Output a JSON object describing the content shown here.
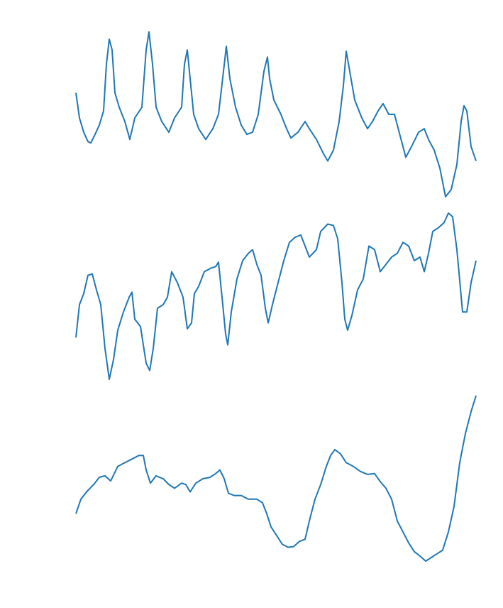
{
  "chart_data": [
    {
      "type": "line",
      "series": [
        {
          "color": "#1f77b4",
          "x": [
            0,
            5,
            11,
            17,
            21,
            27,
            33,
            39,
            43,
            47,
            51,
            55,
            61,
            69,
            76,
            83,
            93,
            99,
            103,
            108,
            113,
            121,
            131,
            139,
            149,
            153,
            157,
            161,
            166,
            173,
            183,
            193,
            201,
            208,
            212,
            217,
            225,
            233,
            241,
            249,
            257,
            265,
            270,
            273,
            279,
            289,
            297,
            303,
            313,
            323,
            329,
            339,
            349,
            355,
            363,
            371,
            377,
            381,
            386,
            393,
            403,
            411,
            418,
            426,
            433,
            441,
            449,
            457,
            465,
            473,
            483,
            491,
            497,
            505,
            513,
            521,
            529,
            537,
            543,
            547,
            551,
            557,
            564
          ],
          "values": [
            170,
            135,
            115,
            102,
            100,
            112,
            125,
            145,
            210,
            245,
            230,
            170,
            150,
            130,
            105,
            135,
            150,
            230,
            255,
            210,
            150,
            130,
            115,
            135,
            150,
            210,
            230,
            190,
            140,
            120,
            105,
            120,
            140,
            200,
            235,
            190,
            150,
            125,
            112,
            115,
            140,
            200,
            220,
            190,
            160,
            140,
            120,
            107,
            115,
            130,
            120,
            105,
            85,
            75,
            90,
            130,
            180,
            228,
            200,
            160,
            135,
            120,
            130,
            145,
            155,
            140,
            140,
            110,
            80,
            95,
            115,
            120,
            105,
            90,
            65,
            25,
            35,
            70,
            130,
            152,
            145,
            95,
            75
          ]
        }
      ]
    },
    {
      "type": "line",
      "series": [
        {
          "color": "#1f77b4",
          "x": [
            0,
            5,
            11,
            17,
            23,
            29,
            35,
            41,
            47,
            53,
            59,
            67,
            75,
            79,
            83,
            91,
            99,
            104,
            109,
            115,
            123,
            129,
            135,
            143,
            151,
            157,
            163,
            167,
            173,
            181,
            191,
            197,
            201,
            207,
            211,
            214,
            219,
            227,
            235,
            243,
            249,
            255,
            261,
            267,
            271,
            277,
            285,
            293,
            301,
            309,
            317,
            323,
            329,
            339,
            345,
            355,
            363,
            369,
            375,
            379,
            383,
            389,
            397,
            405,
            413,
            421,
            429,
            437,
            445,
            453,
            461,
            469,
            477,
            485,
            491,
            497,
            503,
            511,
            519,
            525,
            531,
            537,
            545,
            551,
            557,
            564
          ],
          "values": [
            75,
            120,
            135,
            160,
            162,
            140,
            120,
            60,
            18,
            45,
            85,
            110,
            130,
            137,
            100,
            90,
            40,
            30,
            60,
            115,
            120,
            130,
            165,
            150,
            130,
            87,
            95,
            135,
            145,
            165,
            170,
            172,
            178,
            120,
            80,
            65,
            110,
            155,
            180,
            190,
            195,
            175,
            160,
            115,
            95,
            120,
            150,
            180,
            205,
            212,
            215,
            200,
            185,
            195,
            220,
            230,
            228,
            210,
            150,
            100,
            85,
            105,
            140,
            155,
            200,
            195,
            165,
            175,
            185,
            190,
            205,
            200,
            180,
            185,
            165,
            190,
            220,
            225,
            232,
            245,
            240,
            195,
            110,
            110,
            150,
            180
          ]
        }
      ]
    },
    {
      "type": "line",
      "series": [
        {
          "color": "#1f77b4",
          "x": [
            0,
            7,
            15,
            25,
            33,
            41,
            49,
            59,
            69,
            79,
            89,
            95,
            99,
            105,
            113,
            123,
            131,
            139,
            149,
            155,
            161,
            169,
            179,
            189,
            197,
            203,
            209,
            215,
            223,
            233,
            243,
            255,
            263,
            269,
            275,
            283,
            291,
            299,
            307,
            315,
            323,
            329,
            337,
            345,
            353,
            359,
            365,
            373,
            381,
            391,
            401,
            411,
            421,
            429,
            437,
            445,
            453,
            461,
            469,
            477,
            485,
            493,
            501,
            509,
            517,
            525,
            533,
            541,
            549,
            557,
            564
          ],
          "values": [
            80,
            100,
            110,
            120,
            130,
            132,
            125,
            145,
            150,
            155,
            160,
            160,
            140,
            122,
            132,
            128,
            120,
            115,
            122,
            120,
            110,
            122,
            128,
            130,
            135,
            140,
            128,
            108,
            105,
            105,
            100,
            100,
            95,
            80,
            62,
            50,
            38,
            34,
            35,
            42,
            45,
            70,
            100,
            120,
            145,
            160,
            168,
            162,
            150,
            145,
            138,
            134,
            135,
            124,
            115,
            100,
            70,
            55,
            40,
            28,
            22,
            15,
            20,
            25,
            30,
            55,
            90,
            150,
            190,
            220,
            242
          ]
        }
      ]
    }
  ]
}
